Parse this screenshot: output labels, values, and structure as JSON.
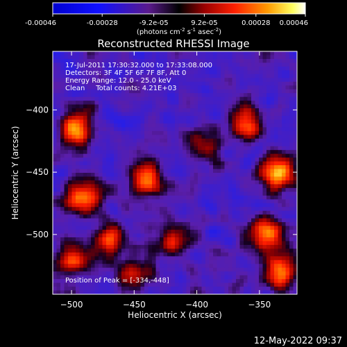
{
  "colorbar": {
    "ticks": [
      "-0.00046",
      "-0.00028",
      "-9.2e-05",
      "9.2e-05",
      "0.00028",
      "0.00046"
    ],
    "tick_values": [
      -0.00046,
      -0.00028,
      -9.2e-05,
      9.2e-05,
      0.00028,
      0.00046
    ],
    "range": [
      -0.00046,
      0.00046
    ],
    "label_prefix": "(photons cm",
    "label_exp1": "-2",
    "label_mid": " s",
    "label_exp2": "-1",
    "label_mid2": " asec",
    "label_exp3": "-2",
    "label_suffix": ")"
  },
  "chart_data": {
    "type": "heatmap",
    "title": "Reconstructed RHESSI Image",
    "xlabel": "Heliocentric X (arcsec)",
    "ylabel": "Heliocentric Y (arcsec)",
    "xlim": [
      -515,
      -320
    ],
    "ylim": [
      -548,
      -353
    ],
    "xticks": [
      -500,
      -450,
      -400,
      -350
    ],
    "yticks": [
      -400,
      -450,
      -500
    ],
    "colormap": "hot (blue-purple-red-yellow-white)",
    "grid_resolution": [
      64,
      64
    ],
    "annotations": [
      "17-Jul-2011 17:30:32.000 to 17:33:08.000",
      "Detectors: 3F 4F 5F 6F 7F 8F, Att 0",
      "Energy Range: 12.0 - 25.0 keV",
      "Clean     Total counts: 4.21E+03"
    ],
    "peak_label": "Position of Peak = [-334,-448]",
    "peak_position": [
      -334,
      -448
    ],
    "bright_regions": [
      {
        "x": -335,
        "y": -450,
        "intensity": 1.0
      },
      {
        "x": -495,
        "y": -415,
        "intensity": 0.9
      },
      {
        "x": -440,
        "y": -455,
        "intensity": 0.75
      },
      {
        "x": -490,
        "y": -470,
        "intensity": 0.8
      },
      {
        "x": -420,
        "y": -505,
        "intensity": 0.6
      },
      {
        "x": -345,
        "y": -500,
        "intensity": 0.85
      },
      {
        "x": -335,
        "y": -530,
        "intensity": 0.8
      },
      {
        "x": -360,
        "y": -410,
        "intensity": 0.65
      },
      {
        "x": -470,
        "y": -505,
        "intensity": 0.55
      },
      {
        "x": -500,
        "y": -520,
        "intensity": 0.6
      },
      {
        "x": -450,
        "y": -530,
        "intensity": 0.5
      },
      {
        "x": -395,
        "y": -430,
        "intensity": 0.45
      }
    ]
  },
  "timestamp": "12-May-2022 09:37"
}
